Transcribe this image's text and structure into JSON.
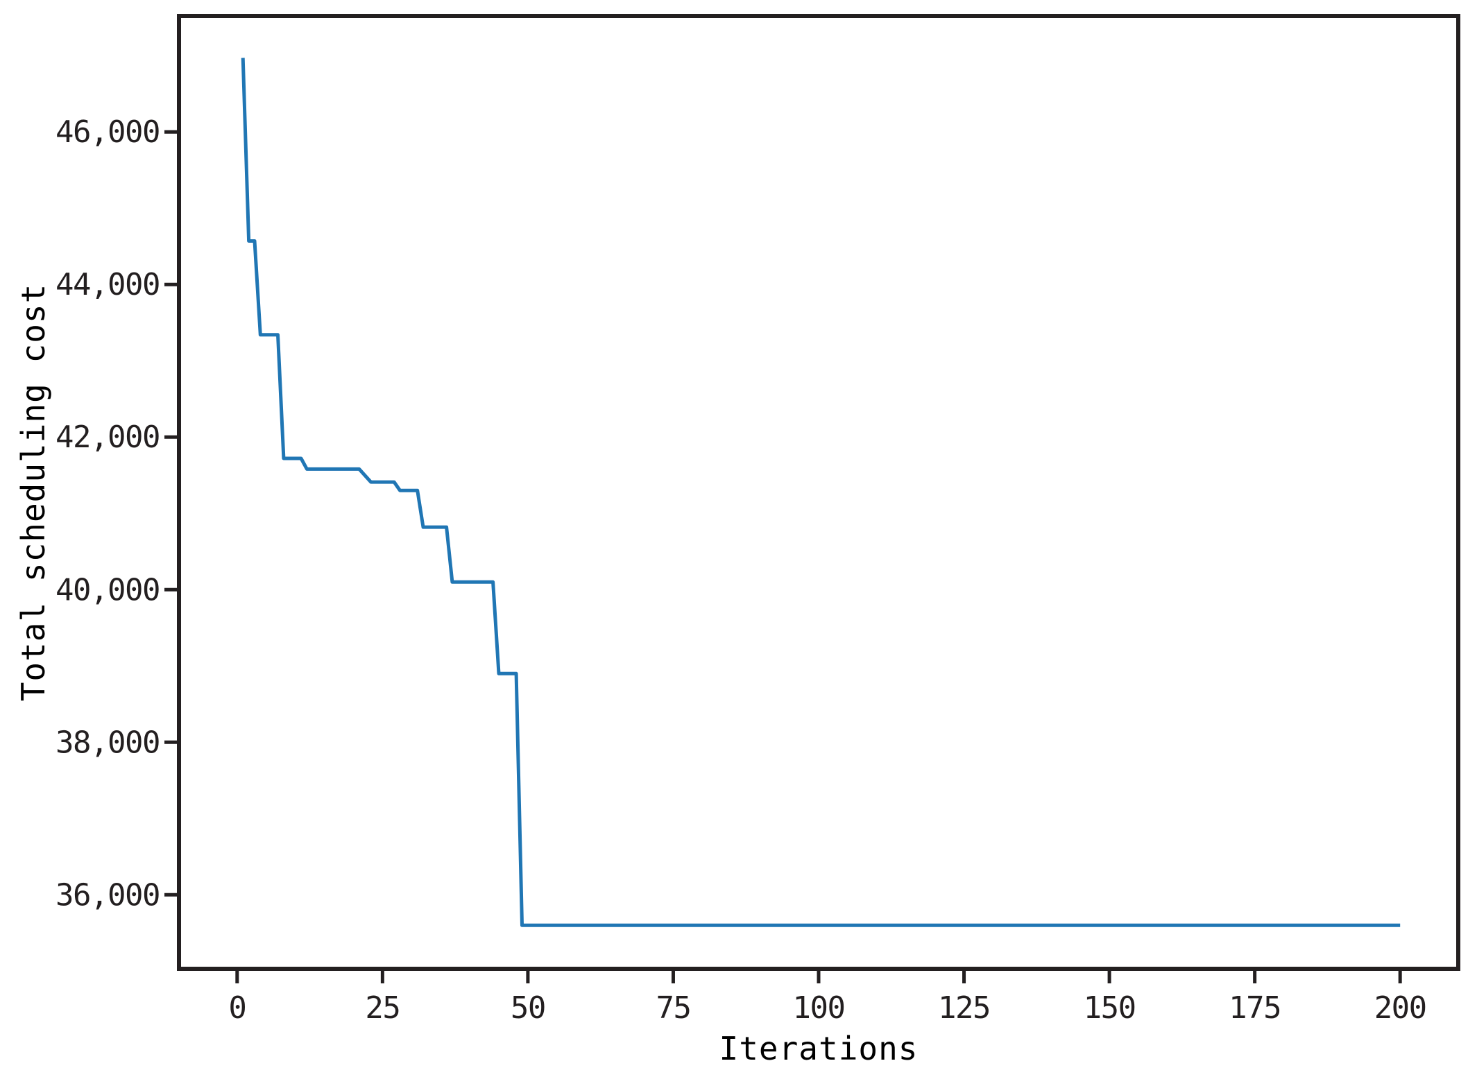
{
  "figure": {
    "background": "#ffffff",
    "axis_color": "#231f20",
    "plot_bg": "#ffffff"
  },
  "chart_data": {
    "type": "line",
    "title": "",
    "xlabel": "Iterations",
    "ylabel": "Total scheduling cost",
    "x_ticks": [
      0,
      25,
      50,
      75,
      100,
      125,
      150,
      175,
      200
    ],
    "x_tick_labels": [
      "0",
      "25",
      "50",
      "75",
      "100",
      "125",
      "150",
      "175",
      "200"
    ],
    "y_ticks": [
      36000,
      38000,
      40000,
      42000,
      44000,
      46000
    ],
    "y_tick_labels": [
      "36,000",
      "38,000",
      "40,000",
      "42,000",
      "44,000",
      "46,000"
    ],
    "xlim": [
      -10,
      210
    ],
    "ylim": [
      35030,
      47520
    ],
    "grid": false,
    "legend_position": "none",
    "series": [
      {
        "name": "Total scheduling cost",
        "color": "#2076b4",
        "line_width": 5,
        "points": [
          [
            1,
            46970
          ],
          [
            2,
            44570
          ],
          [
            3,
            44570
          ],
          [
            4,
            43340
          ],
          [
            7,
            43340
          ],
          [
            8,
            41720
          ],
          [
            11,
            41720
          ],
          [
            12,
            41580
          ],
          [
            21,
            41580
          ],
          [
            23,
            41410
          ],
          [
            27,
            41410
          ],
          [
            28,
            41300
          ],
          [
            31,
            41300
          ],
          [
            32,
            40820
          ],
          [
            36,
            40820
          ],
          [
            37,
            40100
          ],
          [
            44,
            40100
          ],
          [
            45,
            38900
          ],
          [
            48,
            38900
          ],
          [
            49,
            35600
          ],
          [
            200,
            35600
          ]
        ]
      }
    ]
  }
}
